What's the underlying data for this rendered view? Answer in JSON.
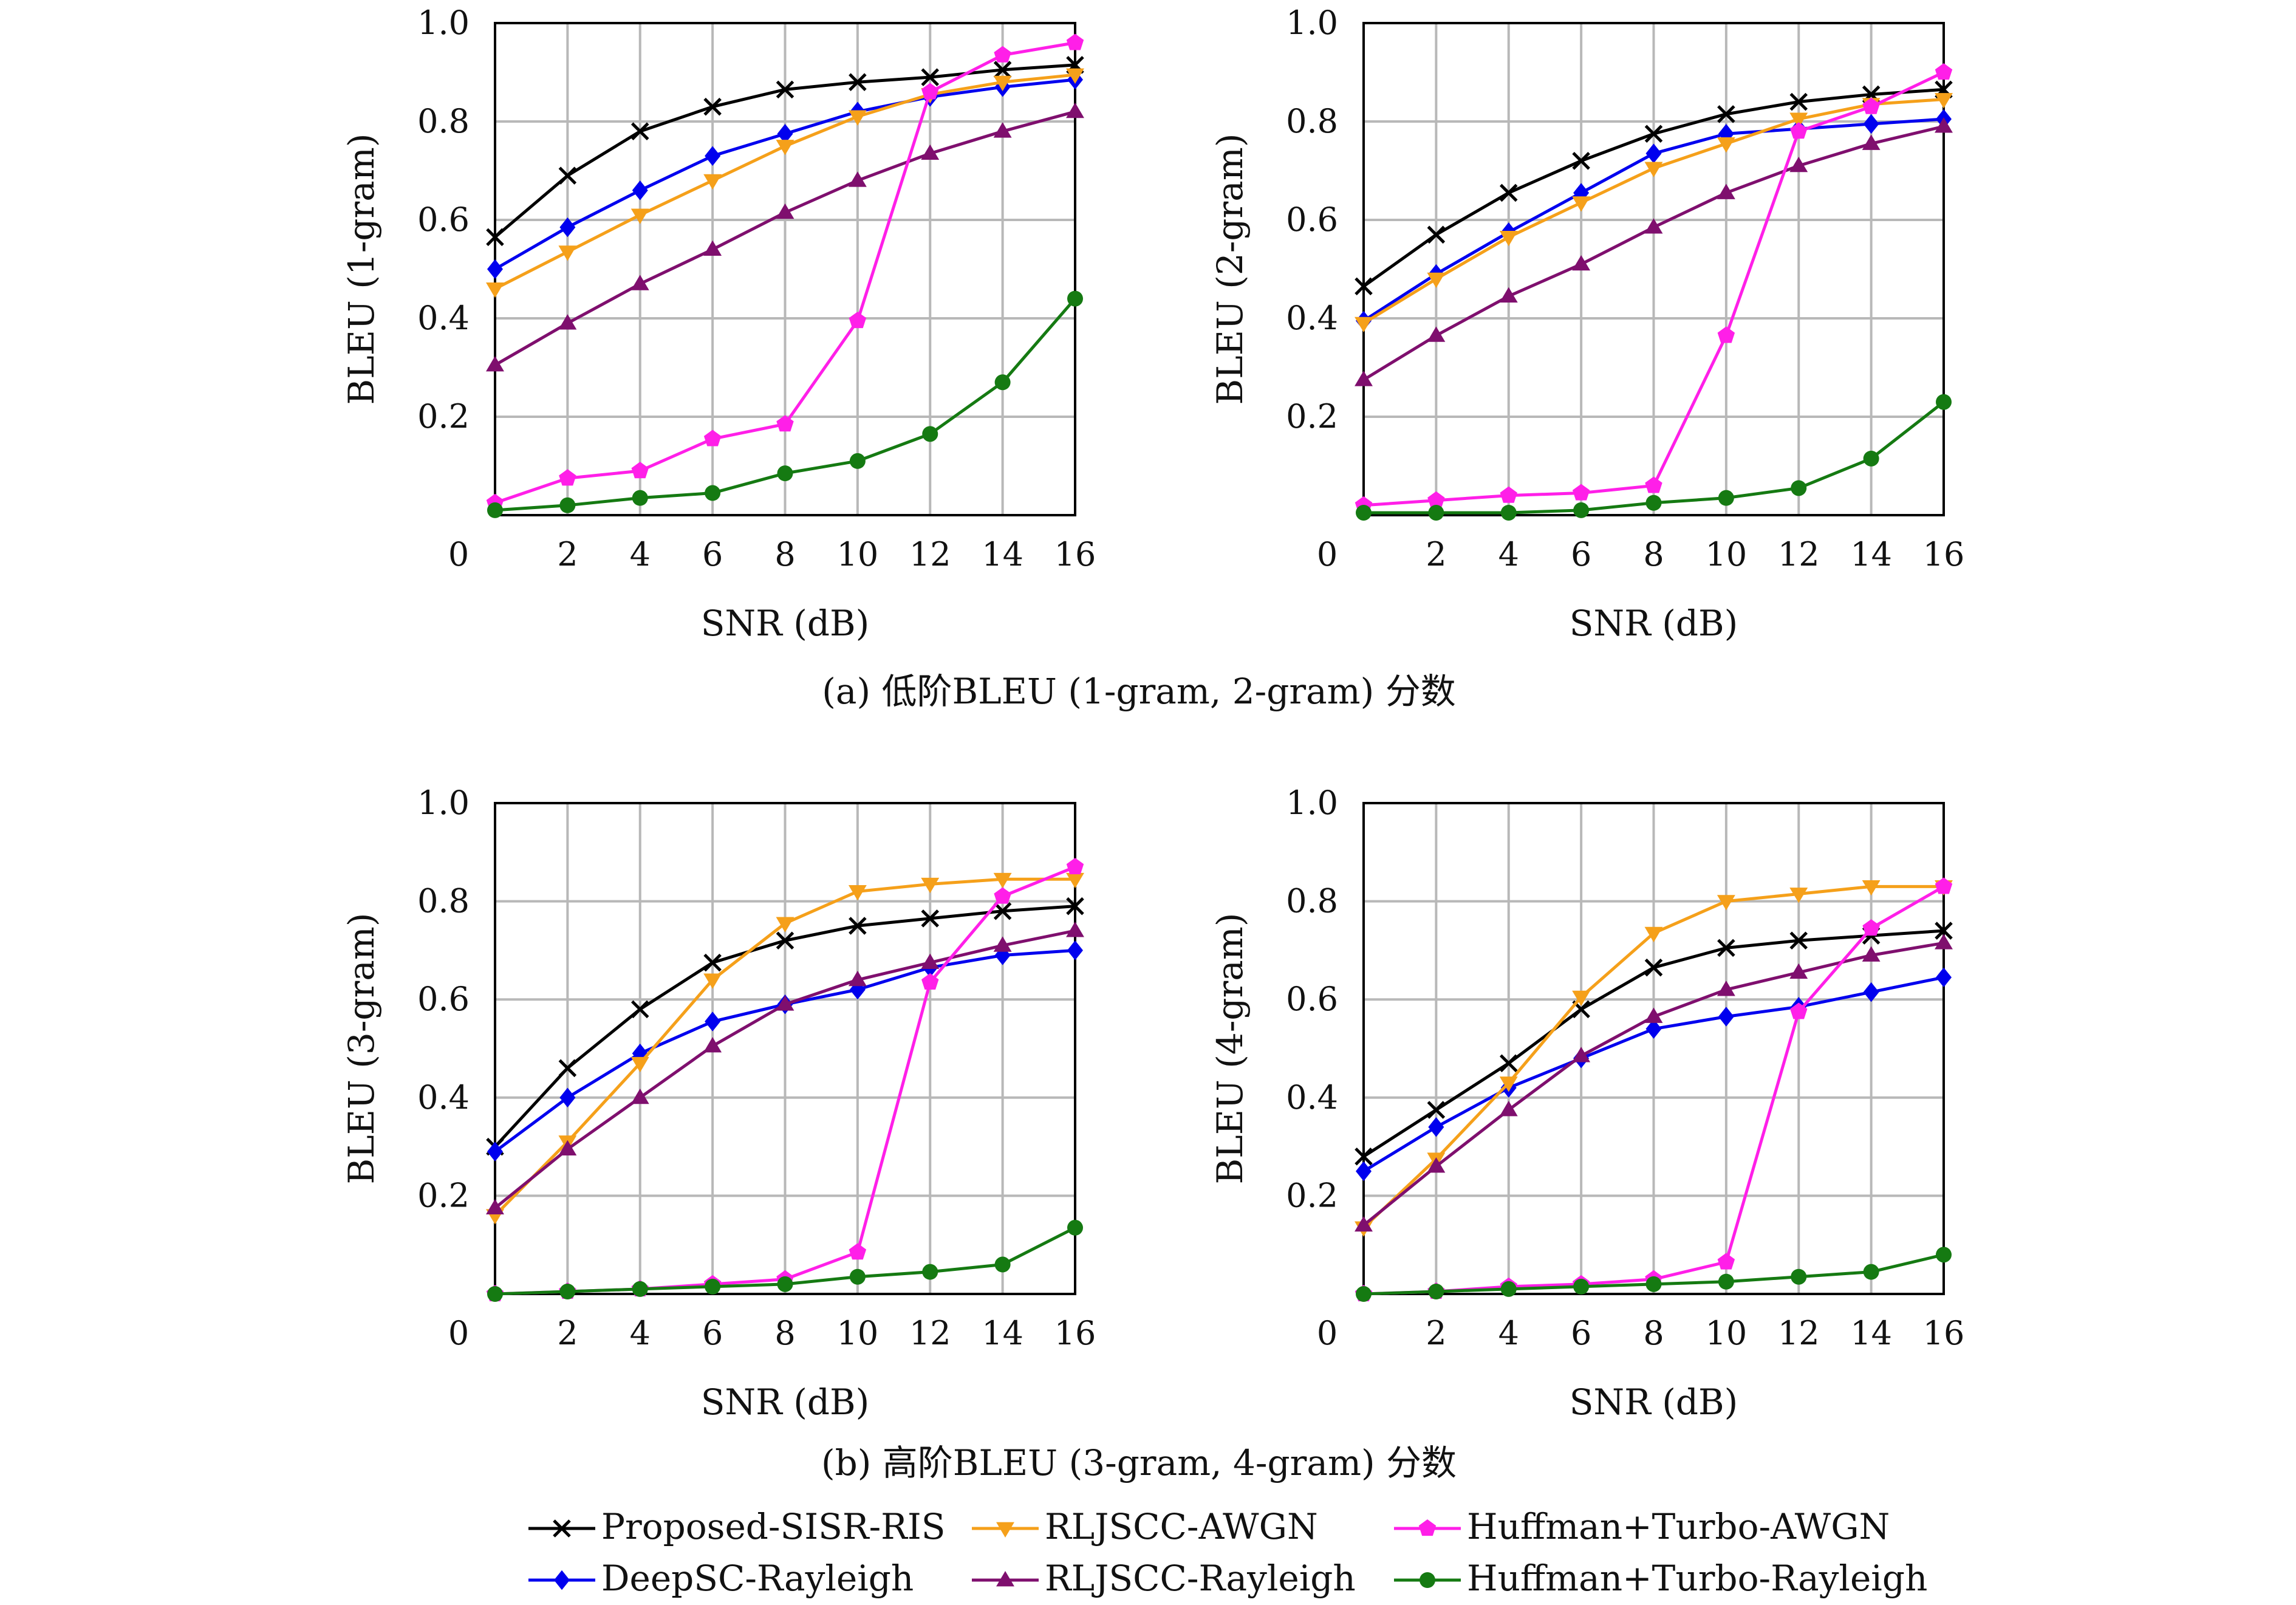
{
  "captions": {
    "a": "(a) 低阶BLEU (1-gram, 2-gram) 分数",
    "b": "(b) 高阶BLEU (3-gram, 4-gram) 分数"
  },
  "legend": [
    {
      "label": "Proposed-SISR-RIS",
      "color": "#000000",
      "marker": "x"
    },
    {
      "label": "RLJSCC-AWGN",
      "color": "#f5a01a",
      "marker": "triangle-down"
    },
    {
      "label": "Huffman+Turbo-AWGN",
      "color": "#ff1fe8",
      "marker": "pentagon"
    },
    {
      "label": "DeepSC-Rayleigh",
      "color": "#0000ee",
      "marker": "diamond"
    },
    {
      "label": "RLJSCC-Rayleigh",
      "color": "#7f0f6e",
      "marker": "triangle-up"
    },
    {
      "label": "Huffman+Turbo-Rayleigh",
      "color": "#157a12",
      "marker": "circle"
    }
  ],
  "chart_data": [
    {
      "type": "line",
      "xlabel": "SNR (dB)",
      "ylabel": "BLEU (1-gram)",
      "xlim": [
        0,
        16
      ],
      "ylim": [
        0,
        1.0
      ],
      "xticks": [
        "0",
        "2",
        "4",
        "6",
        "8",
        "10",
        "12",
        "14",
        "16"
      ],
      "yticks": [
        "0.2",
        "0.4",
        "0.6",
        "0.8",
        "1.0"
      ],
      "grid": true,
      "x": [
        0,
        2,
        4,
        6,
        8,
        10,
        12,
        14,
        16
      ],
      "series": [
        {
          "name": "Proposed-SISR-RIS",
          "values": [
            0.565,
            0.69,
            0.78,
            0.83,
            0.865,
            0.88,
            0.89,
            0.905,
            0.915
          ]
        },
        {
          "name": "DeepSC-Rayleigh",
          "values": [
            0.5,
            0.585,
            0.66,
            0.73,
            0.775,
            0.82,
            0.85,
            0.87,
            0.885
          ]
        },
        {
          "name": "RLJSCC-AWGN",
          "values": [
            0.46,
            0.535,
            0.61,
            0.68,
            0.75,
            0.81,
            0.855,
            0.88,
            0.895
          ]
        },
        {
          "name": "RLJSCC-Rayleigh",
          "values": [
            0.305,
            0.39,
            0.47,
            0.54,
            0.615,
            0.68,
            0.735,
            0.78,
            0.82
          ]
        },
        {
          "name": "Huffman+Turbo-AWGN",
          "values": [
            0.025,
            0.075,
            0.09,
            0.155,
            0.185,
            0.395,
            0.86,
            0.935,
            0.96
          ]
        },
        {
          "name": "Huffman+Turbo-Rayleigh",
          "values": [
            0.01,
            0.02,
            0.035,
            0.045,
            0.085,
            0.11,
            0.165,
            0.27,
            0.44
          ]
        }
      ]
    },
    {
      "type": "line",
      "xlabel": "SNR (dB)",
      "ylabel": "BLEU (2-gram)",
      "xlim": [
        0,
        16
      ],
      "ylim": [
        0,
        1.0
      ],
      "xticks": [
        "0",
        "2",
        "4",
        "6",
        "8",
        "10",
        "12",
        "14",
        "16"
      ],
      "yticks": [
        "0.2",
        "0.4",
        "0.6",
        "0.8",
        "1.0"
      ],
      "grid": true,
      "x": [
        0,
        2,
        4,
        6,
        8,
        10,
        12,
        14,
        16
      ],
      "series": [
        {
          "name": "Proposed-SISR-RIS",
          "values": [
            0.465,
            0.57,
            0.655,
            0.72,
            0.775,
            0.815,
            0.84,
            0.855,
            0.865
          ]
        },
        {
          "name": "DeepSC-Rayleigh",
          "values": [
            0.395,
            0.49,
            0.575,
            0.655,
            0.735,
            0.775,
            0.785,
            0.795,
            0.805
          ]
        },
        {
          "name": "RLJSCC-AWGN",
          "values": [
            0.39,
            0.48,
            0.565,
            0.635,
            0.705,
            0.755,
            0.805,
            0.835,
            0.845
          ]
        },
        {
          "name": "RLJSCC-Rayleigh",
          "values": [
            0.275,
            0.365,
            0.445,
            0.51,
            0.585,
            0.655,
            0.71,
            0.755,
            0.79
          ]
        },
        {
          "name": "Huffman+Turbo-AWGN",
          "values": [
            0.02,
            0.03,
            0.04,
            0.045,
            0.06,
            0.365,
            0.78,
            0.83,
            0.9
          ]
        },
        {
          "name": "Huffman+Turbo-Rayleigh",
          "values": [
            0.005,
            0.005,
            0.005,
            0.01,
            0.025,
            0.035,
            0.055,
            0.115,
            0.23
          ]
        }
      ]
    },
    {
      "type": "line",
      "xlabel": "SNR (dB)",
      "ylabel": "BLEU (3-gram)",
      "xlim": [
        0,
        16
      ],
      "ylim": [
        0,
        1.0
      ],
      "xticks": [
        "0",
        "2",
        "4",
        "6",
        "8",
        "10",
        "12",
        "14",
        "16"
      ],
      "yticks": [
        "0.2",
        "0.4",
        "0.6",
        "0.8",
        "1.0"
      ],
      "grid": true,
      "x": [
        0,
        2,
        4,
        6,
        8,
        10,
        12,
        14,
        16
      ],
      "series": [
        {
          "name": "Proposed-SISR-RIS",
          "values": [
            0.3,
            0.46,
            0.58,
            0.675,
            0.72,
            0.75,
            0.765,
            0.78,
            0.79
          ]
        },
        {
          "name": "DeepSC-Rayleigh",
          "values": [
            0.29,
            0.4,
            0.49,
            0.555,
            0.59,
            0.62,
            0.665,
            0.69,
            0.7
          ]
        },
        {
          "name": "RLJSCC-AWGN",
          "values": [
            0.16,
            0.31,
            0.47,
            0.64,
            0.755,
            0.82,
            0.835,
            0.845,
            0.845
          ]
        },
        {
          "name": "RLJSCC-Rayleigh",
          "values": [
            0.175,
            0.295,
            0.4,
            0.505,
            0.59,
            0.64,
            0.675,
            0.71,
            0.74
          ]
        },
        {
          "name": "Huffman+Turbo-AWGN",
          "values": [
            0.0,
            0.005,
            0.01,
            0.02,
            0.03,
            0.085,
            0.635,
            0.81,
            0.87
          ]
        },
        {
          "name": "Huffman+Turbo-Rayleigh",
          "values": [
            0.0,
            0.005,
            0.01,
            0.015,
            0.02,
            0.035,
            0.045,
            0.06,
            0.135
          ]
        }
      ]
    },
    {
      "type": "line",
      "xlabel": "SNR (dB)",
      "ylabel": "BLEU (4-gram)",
      "xlim": [
        0,
        16
      ],
      "ylim": [
        0,
        1.0
      ],
      "xticks": [
        "0",
        "2",
        "4",
        "6",
        "8",
        "10",
        "12",
        "14",
        "16"
      ],
      "yticks": [
        "0.2",
        "0.4",
        "0.6",
        "0.8",
        "1.0"
      ],
      "grid": true,
      "x": [
        0,
        2,
        4,
        6,
        8,
        10,
        12,
        14,
        16
      ],
      "series": [
        {
          "name": "Proposed-SISR-RIS",
          "values": [
            0.28,
            0.375,
            0.47,
            0.58,
            0.665,
            0.705,
            0.72,
            0.73,
            0.74
          ]
        },
        {
          "name": "DeepSC-Rayleigh",
          "values": [
            0.25,
            0.34,
            0.42,
            0.48,
            0.54,
            0.565,
            0.585,
            0.615,
            0.645
          ]
        },
        {
          "name": "RLJSCC-AWGN",
          "values": [
            0.135,
            0.275,
            0.43,
            0.605,
            0.735,
            0.8,
            0.815,
            0.83,
            0.83
          ]
        },
        {
          "name": "RLJSCC-Rayleigh",
          "values": [
            0.14,
            0.26,
            0.375,
            0.485,
            0.565,
            0.62,
            0.655,
            0.69,
            0.715
          ]
        },
        {
          "name": "Huffman+Turbo-AWGN",
          "values": [
            0.0,
            0.005,
            0.015,
            0.02,
            0.03,
            0.065,
            0.575,
            0.745,
            0.83
          ]
        },
        {
          "name": "Huffman+Turbo-Rayleigh",
          "values": [
            0.0,
            0.005,
            0.01,
            0.015,
            0.02,
            0.025,
            0.035,
            0.045,
            0.08
          ]
        }
      ]
    }
  ]
}
